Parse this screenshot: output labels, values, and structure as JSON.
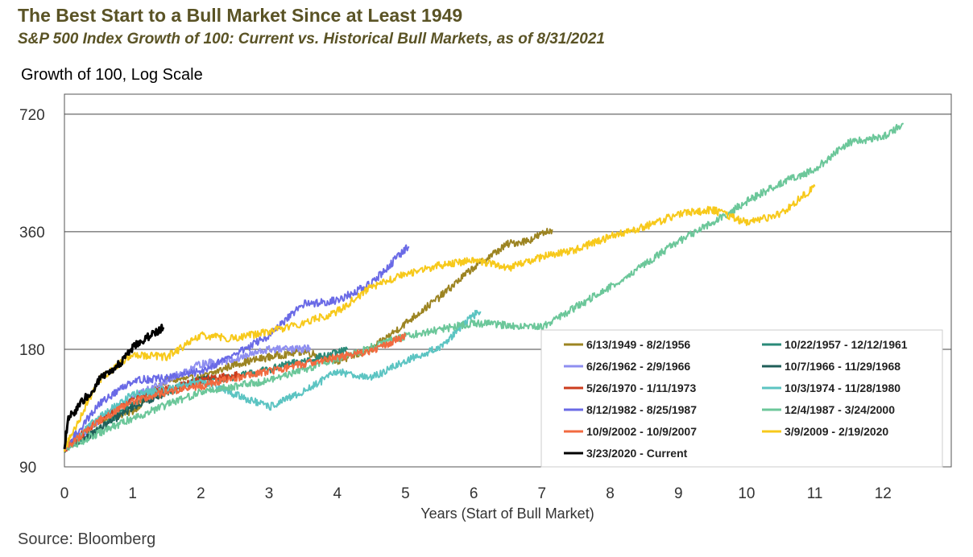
{
  "header": {
    "title": "The Best Start to a Bull Market Since at Least 1949",
    "subtitle": "S&P 500 Index Growth of 100: Current vs. Historical Bull Markets, as of 8/31/2021"
  },
  "footer": {
    "source": "Source: Bloomberg"
  },
  "chart_data": {
    "type": "line",
    "title": "The Best Start to a Bull Market Since at Least 1949",
    "ylabel": "Growth of 100, Log Scale",
    "xlabel": "Years (Start of Bull Market)",
    "yscale": "log",
    "ylim": [
      90,
      810
    ],
    "xlim": [
      0,
      13
    ],
    "yticks": [
      90,
      180,
      360,
      720
    ],
    "xticks": [
      0,
      1,
      2,
      3,
      4,
      5,
      6,
      7,
      8,
      9,
      10,
      11,
      12
    ],
    "grid": "horizontal",
    "legend_position": "bottom-right",
    "series": [
      {
        "name": "6/13/1949 - 8/2/1956",
        "color": "#9c8422",
        "x": [
          0,
          0.5,
          1,
          1.5,
          2,
          2.5,
          3,
          3.5,
          4,
          4.2,
          4.5,
          5,
          5.5,
          6,
          6.5,
          6.8,
          7,
          7.15
        ],
        "y": [
          100,
          118,
          125,
          150,
          152,
          165,
          172,
          178,
          168,
          172,
          180,
          210,
          245,
          292,
          335,
          342,
          355,
          365
        ]
      },
      {
        "name": "10/22/1957 - 12/12/1961",
        "color": "#2a8a78",
        "x": [
          0,
          0.5,
          1,
          1.5,
          2,
          2.5,
          3,
          3.5,
          4,
          4.15
        ],
        "y": [
          100,
          112,
          132,
          140,
          150,
          153,
          160,
          168,
          176,
          180
        ]
      },
      {
        "name": "6/26/1962 - 2/9/1966",
        "color": "#8f8ff0",
        "x": [
          0,
          0.5,
          1,
          1.5,
          2,
          2.5,
          3,
          3.5,
          3.6
        ],
        "y": [
          100,
          118,
          135,
          150,
          165,
          170,
          180,
          180,
          182
        ]
      },
      {
        "name": "10/7/1966 - 11/29/1968",
        "color": "#1f5e58",
        "x": [
          0,
          0.5,
          1,
          1.5,
          2,
          2.15
        ],
        "y": [
          100,
          112,
          128,
          140,
          150,
          152
        ]
      },
      {
        "name": "5/26/1970 - 1/11/1973",
        "color": "#cc3d1e",
        "x": [
          0,
          0.5,
          1,
          1.5,
          2,
          2.6
        ],
        "y": [
          100,
          118,
          135,
          142,
          150,
          155
        ]
      },
      {
        "name": "10/3/1974 - 11/28/1980",
        "color": "#5cc4c2",
        "x": [
          0,
          0.5,
          1,
          1.5,
          2,
          2.5,
          3,
          3.5,
          4,
          4.5,
          5,
          5.5,
          6,
          6.1
        ],
        "y": [
          100,
          120,
          138,
          142,
          150,
          138,
          128,
          140,
          158,
          152,
          168,
          182,
          220,
          225
        ]
      },
      {
        "name": "8/12/1982 - 8/25/1987",
        "color": "#6a6ae6",
        "x": [
          0,
          0.5,
          1,
          1.5,
          2,
          2.5,
          3,
          3.5,
          4,
          4.5,
          5,
          5.05
        ],
        "y": [
          100,
          130,
          150,
          152,
          158,
          175,
          195,
          235,
          240,
          265,
          325,
          330
        ]
      },
      {
        "name": "12/4/1987 - 3/24/2000",
        "color": "#6cc79a",
        "x": [
          0,
          1,
          2,
          3,
          4,
          5,
          6,
          7,
          8,
          9,
          9.5,
          10,
          10.5,
          11,
          11.5,
          12,
          12.3
        ],
        "y": [
          100,
          120,
          140,
          150,
          170,
          195,
          210,
          205,
          260,
          340,
          380,
          430,
          480,
          520,
          610,
          630,
          680
        ]
      },
      {
        "name": "10/9/2002 - 10/9/2007",
        "color": "#f26a40",
        "x": [
          0,
          0.5,
          1,
          1.5,
          2,
          2.5,
          3,
          3.5,
          4,
          4.5,
          5
        ],
        "y": [
          100,
          118,
          132,
          140,
          145,
          152,
          158,
          165,
          172,
          178,
          195
        ]
      },
      {
        "name": "3/9/2009 - 2/19/2020",
        "color": "#f7c91b",
        "x": [
          0,
          0.5,
          1,
          1.5,
          2,
          2.5,
          3,
          3.5,
          4,
          4.5,
          5,
          5.5,
          6,
          6.5,
          7,
          7.5,
          8,
          8.5,
          9,
          9.5,
          10,
          10.5,
          11
        ],
        "y": [
          100,
          150,
          175,
          172,
          195,
          192,
          200,
          210,
          225,
          260,
          280,
          295,
          305,
          290,
          310,
          325,
          350,
          370,
          400,
          410,
          380,
          400,
          470
        ]
      },
      {
        "name": "3/23/2020 - Current",
        "color": "#000000",
        "x": [
          0,
          0.05,
          0.1,
          0.2,
          0.3,
          0.4,
          0.5,
          0.6,
          0.7,
          0.8,
          0.9,
          1.0,
          1.1,
          1.2,
          1.3,
          1.4,
          1.45
        ],
        "y": [
          100,
          118,
          122,
          128,
          135,
          138,
          150,
          155,
          158,
          165,
          172,
          182,
          188,
          192,
          198,
          202,
          205
        ]
      }
    ]
  }
}
